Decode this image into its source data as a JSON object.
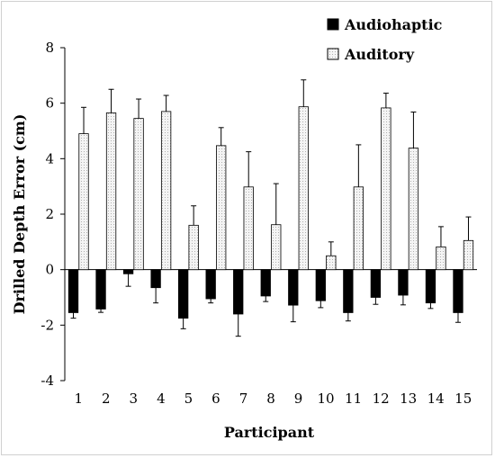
{
  "chart_data": {
    "type": "bar",
    "title": "",
    "xlabel": "Participant",
    "ylabel": "Drilled Depth Error (cm)",
    "ylim": [
      -4,
      8
    ],
    "yticks": [
      -4,
      -2,
      0,
      2,
      4,
      6,
      8
    ],
    "ytick_labels": [
      "-4",
      "-2",
      "0",
      "2",
      "4",
      "6",
      "8"
    ],
    "grid": false,
    "legend_position": "top-right",
    "categories": [
      "1",
      "2",
      "3",
      "4",
      "5",
      "6",
      "7",
      "8",
      "9",
      "10",
      "11",
      "12",
      "13",
      "14",
      "15"
    ],
    "series": [
      {
        "name": "Audiohaptic",
        "color": "#000000",
        "values": [
          -1.55,
          -1.42,
          -0.15,
          -0.65,
          -1.75,
          -1.05,
          -1.6,
          -0.95,
          -1.28,
          -1.12,
          -1.55,
          -1.0,
          -0.92,
          -1.2,
          -1.55
        ],
        "errors": [
          0.2,
          0.12,
          0.45,
          0.55,
          0.38,
          0.15,
          0.8,
          0.2,
          0.6,
          0.25,
          0.3,
          0.25,
          0.35,
          0.2,
          0.35
        ]
      },
      {
        "name": "Auditory",
        "color": "#e8e8e8",
        "values": [
          4.9,
          5.65,
          5.45,
          5.7,
          1.6,
          4.47,
          2.98,
          1.62,
          5.87,
          0.5,
          2.98,
          5.83,
          4.38,
          0.82,
          1.05
        ],
        "errors": [
          0.95,
          0.85,
          0.7,
          0.58,
          0.7,
          0.65,
          1.27,
          1.48,
          0.97,
          0.5,
          1.52,
          0.53,
          1.3,
          0.73,
          0.85
        ]
      }
    ]
  }
}
